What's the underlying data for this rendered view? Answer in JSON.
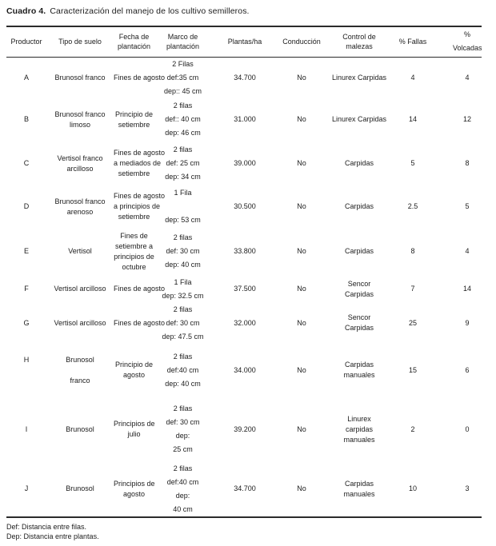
{
  "caption": {
    "label": "Cuadro 4.",
    "text": "Caracterización del manejo de los cultivo semilleros."
  },
  "table": {
    "columns": [
      {
        "id": "productor",
        "lines": [
          "Productor"
        ]
      },
      {
        "id": "tipo_suelo",
        "lines": [
          "Tipo de suelo"
        ]
      },
      {
        "id": "fecha_plantacion",
        "lines": [
          "Fecha de",
          "plantación"
        ]
      },
      {
        "id": "marco_plantacion",
        "lines": [
          "Marco de",
          "plantación"
        ]
      },
      {
        "id": "plantas_ha",
        "lines": [
          "Plantas/ha"
        ]
      },
      {
        "id": "conduccion",
        "lines": [
          "Conducción"
        ]
      },
      {
        "id": "control_malezas",
        "lines": [
          "Control de",
          "malezas"
        ]
      },
      {
        "id": "fallas",
        "lines": [
          "% Fallas"
        ]
      },
      {
        "id": "volcadas",
        "lines": [
          "%",
          "Volcadas"
        ]
      }
    ],
    "rows": [
      {
        "productor": [
          "A"
        ],
        "tipo_suelo": [
          "Brunosol franco"
        ],
        "fecha_plantacion": [
          "Fines de agosto"
        ],
        "marco_plantacion": [
          "2 Filas",
          "def:35 cm",
          "dep:: 45 cm"
        ],
        "plantas_ha": "34.700",
        "conduccion": "No",
        "control_malezas": [
          "Linurex Carpidas"
        ],
        "fallas": "4",
        "volcadas": "4"
      },
      {
        "productor": [
          "B"
        ],
        "tipo_suelo": [
          "Brunosol franco",
          "limoso"
        ],
        "fecha_plantacion": [
          "Principio de",
          "setiembre"
        ],
        "marco_plantacion": [
          "2 filas",
          "def:: 40 cm",
          "dep: 46 cm"
        ],
        "plantas_ha": "31.000",
        "conduccion": "No",
        "control_malezas": [
          "Linurex Carpidas"
        ],
        "fallas": "14",
        "volcadas": "12"
      },
      {
        "productor": [
          "C"
        ],
        "tipo_suelo": [
          "Vertisol franco",
          "arcilloso"
        ],
        "fecha_plantacion": [
          "Fines de agosto",
          "a mediados de",
          "setiembre"
        ],
        "marco_plantacion": [
          "2 filas",
          "def: 25 cm",
          "dep: 34 cm"
        ],
        "plantas_ha": "39.000",
        "conduccion": "No",
        "control_malezas": [
          "Carpidas"
        ],
        "fallas": "5",
        "volcadas": "8"
      },
      {
        "productor": [
          "D"
        ],
        "tipo_suelo": [
          "Brunosol franco",
          "arenoso"
        ],
        "fecha_plantacion": [
          "Fines de agosto",
          "a principios de",
          "setiembre"
        ],
        "marco_plantacion": [
          "1 Fila",
          "",
          "dep: 53 cm"
        ],
        "plantas_ha": "30.500",
        "conduccion": "No",
        "control_malezas": [
          "Carpidas"
        ],
        "fallas": "2.5",
        "volcadas": "5"
      },
      {
        "productor": [
          "E"
        ],
        "tipo_suelo": [
          "Vertisol"
        ],
        "fecha_plantacion": [
          "Fines de",
          "setiembre a",
          "principios de",
          "octubre"
        ],
        "marco_plantacion": [
          "2 filas",
          "def: 30 cm",
          "dep: 40 cm"
        ],
        "plantas_ha": "33.800",
        "conduccion": "No",
        "control_malezas": [
          "Carpidas"
        ],
        "fallas": "8",
        "volcadas": "4"
      },
      {
        "productor": [
          "F"
        ],
        "tipo_suelo": [
          "Vertisol arcilloso"
        ],
        "fecha_plantacion": [
          "Fines de agosto"
        ],
        "marco_plantacion": [
          "1 Fila",
          "dep: 32.5 cm"
        ],
        "plantas_ha": "37.500",
        "conduccion": "No",
        "control_malezas": [
          "Sencor",
          "Carpidas"
        ],
        "fallas": "7",
        "volcadas": "14"
      },
      {
        "productor": [
          "G"
        ],
        "tipo_suelo": [
          "Vertisol arcilloso"
        ],
        "fecha_plantacion": [
          "Fines de agosto"
        ],
        "marco_plantacion": [
          "2 filas",
          "def: 30 cm",
          "dep: 47.5 cm"
        ],
        "plantas_ha": "32.000",
        "conduccion": "No",
        "control_malezas": [
          "Sencor",
          "Carpidas"
        ],
        "fallas": "25",
        "volcadas": "9"
      },
      {
        "productor": [
          "H",
          "",
          ""
        ],
        "tipo_suelo": [
          "Brunosol",
          "",
          "franco"
        ],
        "fecha_plantacion": [
          "Principio de",
          "agosto"
        ],
        "marco_plantacion": [
          "2 filas",
          "def:40 cm",
          "dep: 40 cm"
        ],
        "plantas_ha": "34.000",
        "conduccion": "No",
        "control_malezas": [
          "Carpidas",
          "manuales"
        ],
        "fallas": "15",
        "volcadas": "6"
      },
      {
        "productor": [
          "I"
        ],
        "tipo_suelo": [
          "Brunosol"
        ],
        "fecha_plantacion": [
          "Principios de",
          "julio"
        ],
        "marco_plantacion": [
          "2 filas",
          "def: 30 cm",
          "dep:",
          "25 cm"
        ],
        "plantas_ha": "39.200",
        "conduccion": "No",
        "control_malezas": [
          "Linurex",
          "carpidas",
          "manuales"
        ],
        "fallas": "2",
        "volcadas": "0"
      },
      {
        "productor": [
          "J"
        ],
        "tipo_suelo": [
          "Brunosol"
        ],
        "fecha_plantacion": [
          "Principios de",
          "agosto"
        ],
        "marco_plantacion": [
          "2 filas",
          "def:40 cm",
          "dep:",
          "40 cm"
        ],
        "plantas_ha": "34.700",
        "conduccion": "No",
        "control_malezas": [
          "Carpidas",
          "manuales"
        ],
        "fallas": "10",
        "volcadas": "3"
      }
    ]
  },
  "footnotes": [
    "Def: Distancia entre filas.",
    "Dep: Distancia entre plantas."
  ]
}
